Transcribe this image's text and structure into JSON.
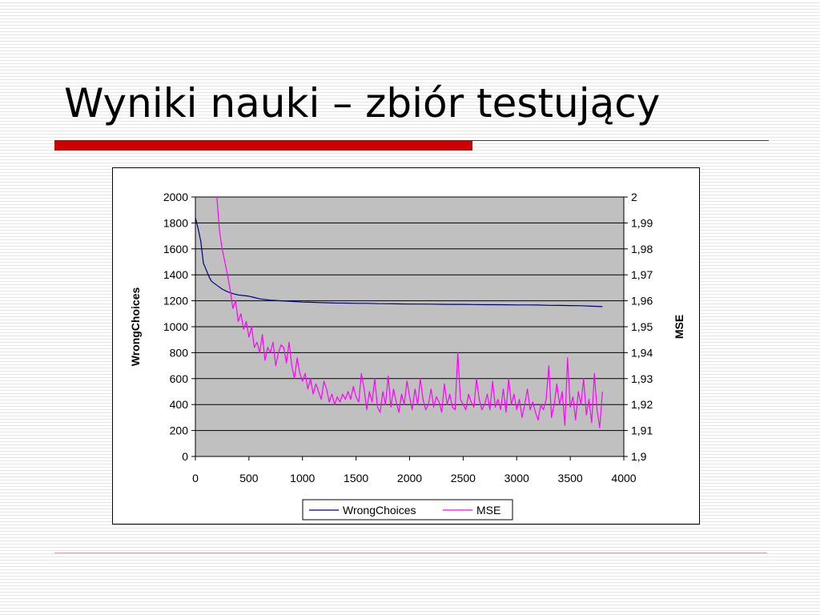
{
  "slide": {
    "title": "Wyniki nauki – zbiór testujący"
  },
  "chart_data": {
    "type": "line",
    "title": "",
    "xlabel": "",
    "ylabel": "WrongChoices",
    "y2label": "MSE",
    "xlim": [
      0,
      4000
    ],
    "ylim": [
      0,
      2000
    ],
    "y2lim": [
      1.9,
      2.0
    ],
    "x_ticks": [
      "0",
      "500",
      "1000",
      "1500",
      "2000",
      "2500",
      "3000",
      "3500",
      "4000"
    ],
    "y_ticks": [
      "0",
      "200",
      "400",
      "600",
      "800",
      "1000",
      "1200",
      "1400",
      "1600",
      "1800",
      "2000"
    ],
    "y2_ticks": [
      "1,9",
      "1,91",
      "1,92",
      "1,93",
      "1,94",
      "1,95",
      "1,96",
      "1,97",
      "1,98",
      "1,99",
      "2"
    ],
    "grid": true,
    "legend": "bottom",
    "plot_background": "#c0c0c0",
    "series": [
      {
        "name": "WrongChoices",
        "axis": "left",
        "color": "#000080",
        "x": [
          0,
          25,
          50,
          75,
          100,
          125,
          150,
          200,
          250,
          300,
          350,
          400,
          450,
          500,
          550,
          600,
          700,
          800,
          900,
          1000,
          1100,
          1200,
          1300,
          1400,
          1500,
          1600,
          1700,
          1800,
          1900,
          2000,
          2100,
          2200,
          2300,
          2400,
          2500,
          2600,
          2700,
          2800,
          2900,
          3000,
          3100,
          3200,
          3300,
          3400,
          3500,
          3600,
          3700,
          3800
        ],
        "values": [
          1840,
          1760,
          1660,
          1490,
          1440,
          1390,
          1350,
          1320,
          1290,
          1270,
          1255,
          1245,
          1240,
          1235,
          1225,
          1215,
          1205,
          1200,
          1195,
          1190,
          1188,
          1185,
          1183,
          1182,
          1180,
          1180,
          1178,
          1177,
          1176,
          1175,
          1175,
          1174,
          1173,
          1172,
          1172,
          1171,
          1170,
          1170,
          1169,
          1168,
          1168,
          1167,
          1165,
          1164,
          1163,
          1162,
          1158,
          1155
        ]
      },
      {
        "name": "MSE",
        "axis": "right",
        "color": "#ff00ff",
        "x": [
          200,
          225,
          250,
          275,
          300,
          325,
          350,
          375,
          400,
          425,
          450,
          475,
          500,
          525,
          550,
          575,
          600,
          625,
          650,
          675,
          700,
          725,
          750,
          775,
          800,
          825,
          850,
          875,
          900,
          925,
          950,
          975,
          1000,
          1025,
          1050,
          1075,
          1100,
          1125,
          1150,
          1175,
          1200,
          1225,
          1250,
          1275,
          1300,
          1325,
          1350,
          1375,
          1400,
          1425,
          1450,
          1475,
          1500,
          1525,
          1550,
          1575,
          1600,
          1625,
          1650,
          1675,
          1700,
          1725,
          1750,
          1775,
          1800,
          1825,
          1850,
          1875,
          1900,
          1925,
          1950,
          1975,
          2000,
          2025,
          2050,
          2075,
          2100,
          2125,
          2150,
          2175,
          2200,
          2225,
          2250,
          2275,
          2300,
          2325,
          2350,
          2375,
          2400,
          2425,
          2450,
          2475,
          2500,
          2525,
          2550,
          2575,
          2600,
          2625,
          2650,
          2675,
          2700,
          2725,
          2750,
          2775,
          2800,
          2825,
          2850,
          2875,
          2900,
          2925,
          2950,
          2975,
          3000,
          3025,
          3050,
          3075,
          3100,
          3125,
          3150,
          3175,
          3200,
          3225,
          3250,
          3275,
          3300,
          3325,
          3350,
          3375,
          3400,
          3425,
          3450,
          3475,
          3500,
          3525,
          3550,
          3575,
          3600,
          3625,
          3650,
          3675,
          3700,
          3725,
          3750,
          3775,
          3800
        ],
        "values": [
          2.0,
          1.987,
          1.98,
          1.975,
          1.97,
          1.964,
          1.957,
          1.96,
          1.952,
          1.955,
          1.949,
          1.952,
          1.946,
          1.95,
          1.942,
          1.944,
          1.94,
          1.947,
          1.937,
          1.942,
          1.94,
          1.944,
          1.935,
          1.94,
          1.943,
          1.942,
          1.936,
          1.944,
          1.935,
          1.93,
          1.938,
          1.932,
          1.929,
          1.932,
          1.926,
          1.93,
          1.924,
          1.928,
          1.925,
          1.922,
          1.929,
          1.926,
          1.921,
          1.924,
          1.92,
          1.923,
          1.921,
          1.924,
          1.922,
          1.925,
          1.922,
          1.927,
          1.923,
          1.921,
          1.932,
          1.926,
          1.918,
          1.925,
          1.921,
          1.93,
          1.919,
          1.917,
          1.925,
          1.92,
          1.931,
          1.919,
          1.926,
          1.921,
          1.917,
          1.924,
          1.92,
          1.929,
          1.923,
          1.918,
          1.926,
          1.92,
          1.93,
          1.922,
          1.918,
          1.92,
          1.926,
          1.919,
          1.923,
          1.921,
          1.917,
          1.928,
          1.92,
          1.924,
          1.919,
          1.918,
          1.94,
          1.922,
          1.92,
          1.918,
          1.924,
          1.921,
          1.919,
          1.93,
          1.922,
          1.918,
          1.92,
          1.924,
          1.918,
          1.929,
          1.919,
          1.922,
          1.918,
          1.926,
          1.917,
          1.93,
          1.92,
          1.924,
          1.918,
          1.922,
          1.915,
          1.92,
          1.926,
          1.918,
          1.921,
          1.917,
          1.914,
          1.92,
          1.918,
          1.922,
          1.935,
          1.915,
          1.92,
          1.928,
          1.92,
          1.925,
          1.912,
          1.938,
          1.919,
          1.923,
          1.914,
          1.925,
          1.92,
          1.93,
          1.916,
          1.922,
          1.913,
          1.932,
          1.918,
          1.911,
          1.925
        ]
      }
    ]
  }
}
